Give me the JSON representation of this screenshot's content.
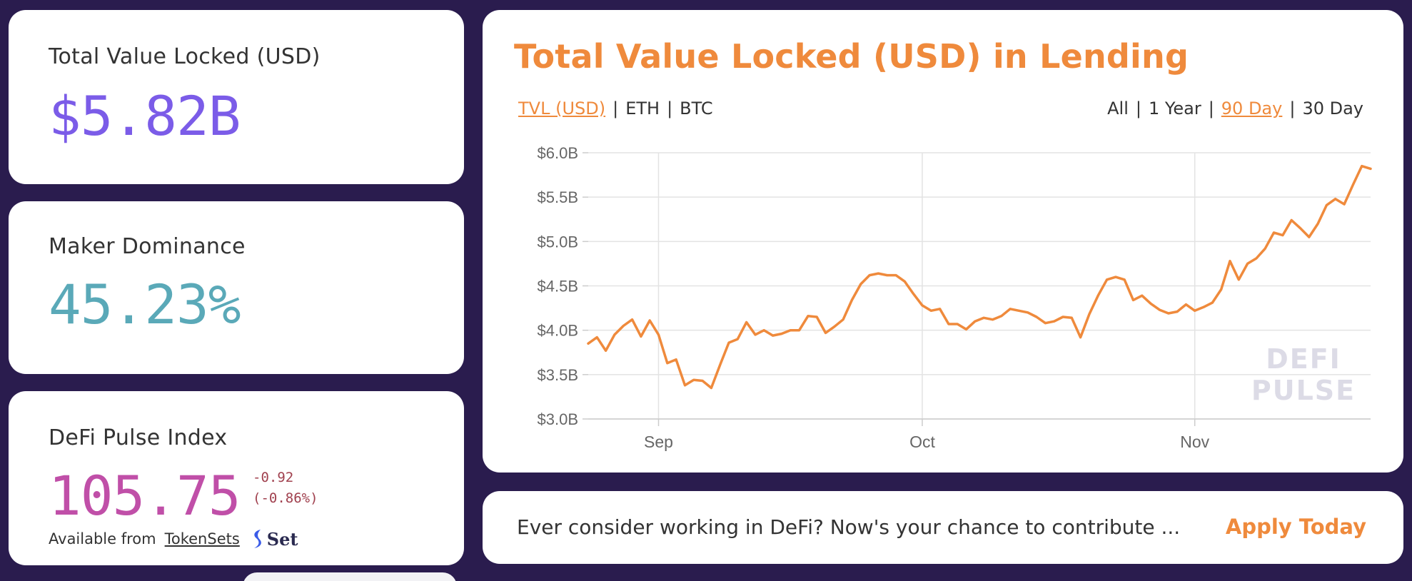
{
  "stats": {
    "tvl": {
      "label": "Total Value Locked (USD)",
      "value": "$5.82B",
      "color": "#7b5ce8"
    },
    "maker": {
      "label": "Maker Dominance",
      "value": "45.23%",
      "color": "#5aa9b8"
    },
    "index": {
      "label": "DeFi Pulse Index",
      "value": "105.75",
      "change_abs": "-0.92",
      "change_pct": "(-0.86%)",
      "available_prefix": "Available from",
      "available_link": "TokenSets",
      "logo_text": "Set",
      "logo_icon": "set-logo-icon"
    }
  },
  "chart_panel": {
    "title": "Total Value Locked (USD) in Lending",
    "metric_tabs": [
      {
        "label": "TVL (USD)",
        "active": true
      },
      {
        "label": "ETH",
        "active": false
      },
      {
        "label": "BTC",
        "active": false
      }
    ],
    "range_tabs": [
      {
        "label": "All",
        "active": false
      },
      {
        "label": "1 Year",
        "active": false
      },
      {
        "label": "90 Day",
        "active": true
      },
      {
        "label": "30 Day",
        "active": false
      }
    ],
    "accent_color": "#ef8a3c"
  },
  "chart_data": {
    "type": "line",
    "title": "Total Value Locked (USD) in Lending",
    "xlabel": "",
    "ylabel": "",
    "ylim": [
      3.0,
      6.0
    ],
    "yticks": [
      3.0,
      3.5,
      4.0,
      4.5,
      5.0,
      5.5,
      6.0
    ],
    "ytick_labels": [
      "$3.0B",
      "$3.5B",
      "$4.0B",
      "$4.5B",
      "$5.0B",
      "$5.5B",
      "$6.0B"
    ],
    "xlim": [
      "2020-08-24",
      "2020-11-21"
    ],
    "xtick_dates": [
      "2020-09-01",
      "2020-10-01",
      "2020-11-01"
    ],
    "xtick_labels": [
      "Sep",
      "Oct",
      "Nov"
    ],
    "grid": true,
    "legend": "none",
    "watermark": [
      "DEFI",
      "PULSE"
    ],
    "series": [
      {
        "color": "#ef8a3c",
        "x": [
          "2020-08-24",
          "2020-08-25",
          "2020-08-26",
          "2020-08-27",
          "2020-08-28",
          "2020-08-29",
          "2020-08-30",
          "2020-08-31",
          "2020-09-01",
          "2020-09-02",
          "2020-09-03",
          "2020-09-04",
          "2020-09-05",
          "2020-09-06",
          "2020-09-07",
          "2020-09-08",
          "2020-09-09",
          "2020-09-10",
          "2020-09-11",
          "2020-09-12",
          "2020-09-13",
          "2020-09-14",
          "2020-09-15",
          "2020-09-16",
          "2020-09-17",
          "2020-09-18",
          "2020-09-19",
          "2020-09-20",
          "2020-09-21",
          "2020-09-22",
          "2020-09-23",
          "2020-09-24",
          "2020-09-25",
          "2020-09-26",
          "2020-09-27",
          "2020-09-28",
          "2020-09-29",
          "2020-09-30",
          "2020-10-01",
          "2020-10-02",
          "2020-10-03",
          "2020-10-04",
          "2020-10-05",
          "2020-10-06",
          "2020-10-07",
          "2020-10-08",
          "2020-10-09",
          "2020-10-10",
          "2020-10-11",
          "2020-10-12",
          "2020-10-13",
          "2020-10-14",
          "2020-10-15",
          "2020-10-16",
          "2020-10-17",
          "2020-10-18",
          "2020-10-19",
          "2020-10-20",
          "2020-10-21",
          "2020-10-22",
          "2020-10-23",
          "2020-10-24",
          "2020-10-25",
          "2020-10-26",
          "2020-10-27",
          "2020-10-28",
          "2020-10-29",
          "2020-10-30",
          "2020-10-31",
          "2020-11-01",
          "2020-11-02",
          "2020-11-03",
          "2020-11-04",
          "2020-11-05",
          "2020-11-06",
          "2020-11-07",
          "2020-11-08",
          "2020-11-09",
          "2020-11-10",
          "2020-11-11",
          "2020-11-12",
          "2020-11-13",
          "2020-11-14",
          "2020-11-15",
          "2020-11-16",
          "2020-11-17",
          "2020-11-18",
          "2020-11-19",
          "2020-11-20",
          "2020-11-21"
        ],
        "y": [
          3.85,
          3.92,
          3.77,
          3.95,
          4.05,
          4.12,
          3.93,
          4.11,
          3.95,
          3.63,
          3.67,
          3.38,
          3.44,
          3.43,
          3.35,
          3.61,
          3.86,
          3.9,
          4.09,
          3.95,
          4.0,
          3.94,
          3.96,
          4.0,
          4.0,
          4.16,
          4.15,
          3.97,
          4.04,
          4.12,
          4.34,
          4.52,
          4.62,
          4.64,
          4.62,
          4.62,
          4.55,
          4.41,
          4.28,
          4.22,
          4.24,
          4.07,
          4.07,
          4.01,
          4.1,
          4.14,
          4.12,
          4.16,
          4.24,
          4.22,
          4.2,
          4.15,
          4.08,
          4.1,
          4.15,
          4.14,
          3.92,
          4.18,
          4.39,
          4.57,
          4.6,
          4.57,
          4.34,
          4.39,
          4.3,
          4.23,
          4.19,
          4.21,
          4.29,
          4.22,
          4.26,
          4.31,
          4.46,
          4.78,
          4.57,
          4.75,
          4.81,
          4.92,
          5.1,
          5.07,
          5.24,
          5.15,
          5.05,
          5.2,
          5.41,
          5.48,
          5.42,
          5.64,
          5.85,
          5.82
        ]
      }
    ]
  },
  "jobs_banner": {
    "text": "Ever consider working in DeFi? Now's your chance to contribute ...",
    "cta": "Apply Today"
  }
}
